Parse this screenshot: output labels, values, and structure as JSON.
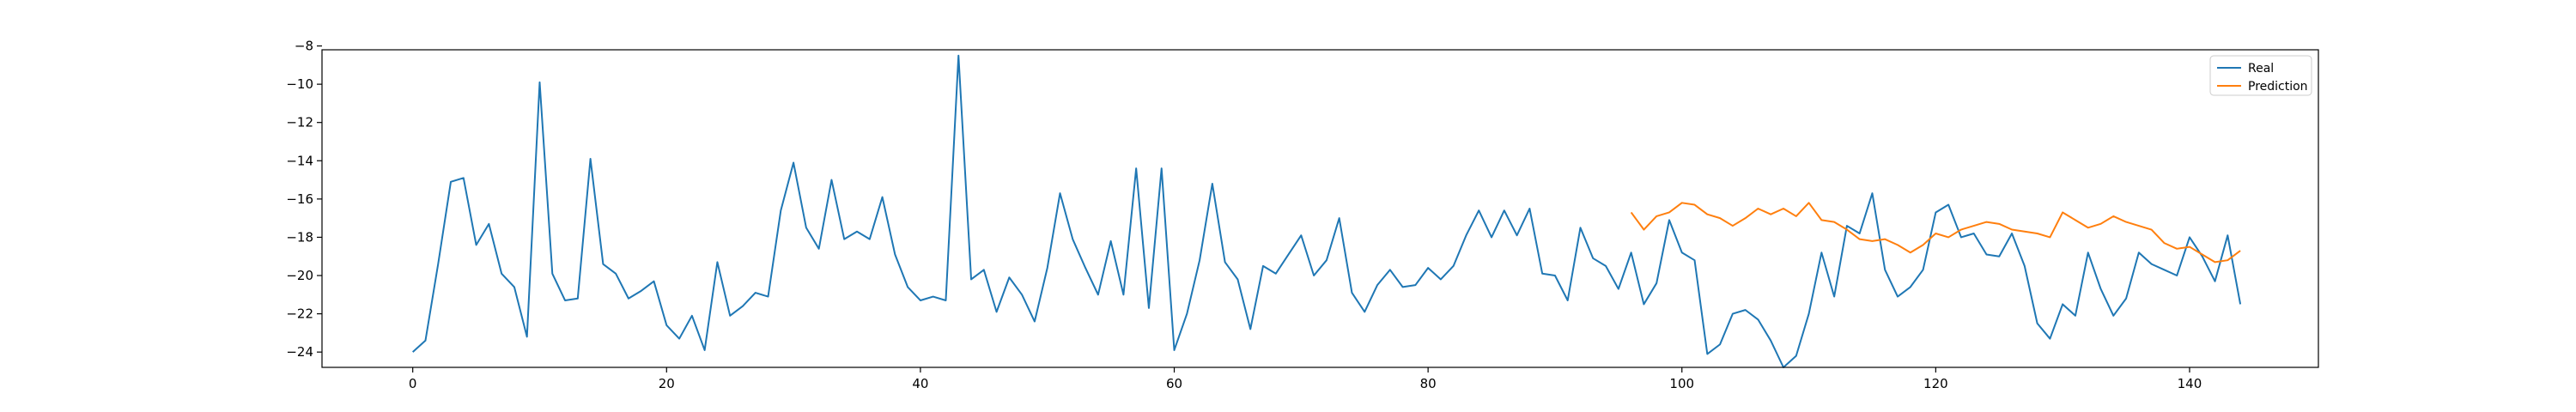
{
  "chart_data": {
    "type": "line",
    "title": "",
    "xlabel": "",
    "ylabel": "",
    "xlim": [
      -7.15,
      150.15
    ],
    "ylim": [
      -24.8,
      -8.2
    ],
    "xticks": [
      0,
      20,
      40,
      60,
      80,
      100,
      120,
      140
    ],
    "yticks": [
      -24,
      -22,
      -20,
      -18,
      -16,
      -14,
      -12,
      -10,
      -8
    ],
    "xtick_labels": [
      "0",
      "20",
      "40",
      "60",
      "80",
      "100",
      "120",
      "140"
    ],
    "ytick_labels": [
      "−24",
      "−22",
      "−20",
      "−18",
      "−16",
      "−14",
      "−12",
      "−10",
      "−8"
    ],
    "grid": false,
    "legend_position": "top-right",
    "series": [
      {
        "name": "Real",
        "color": "#1f77b4",
        "x_start": 0,
        "values": [
          -24.0,
          -23.4,
          -19.4,
          -15.1,
          -14.9,
          -18.4,
          -17.3,
          -19.9,
          -20.6,
          -23.2,
          -9.9,
          -19.9,
          -21.3,
          -21.2,
          -13.9,
          -19.4,
          -19.9,
          -21.2,
          -20.8,
          -20.3,
          -22.6,
          -23.3,
          -22.1,
          -23.9,
          -19.3,
          -22.1,
          -21.6,
          -20.9,
          -21.1,
          -16.6,
          -14.1,
          -17.5,
          -18.6,
          -15.0,
          -18.1,
          -17.7,
          -18.1,
          -15.9,
          -18.9,
          -20.6,
          -21.3,
          -21.1,
          -21.3,
          -8.5,
          -20.2,
          -19.7,
          -21.9,
          -20.1,
          -21.0,
          -22.4,
          -19.6,
          -15.7,
          -18.1,
          -19.6,
          -21.0,
          -18.2,
          -21.0,
          -14.4,
          -21.7,
          -14.4,
          -23.9,
          -22.0,
          -19.2,
          -15.2,
          -19.3,
          -20.2,
          -22.8,
          -19.5,
          -19.9,
          -18.9,
          -17.9,
          -20.0,
          -19.2,
          -17.0,
          -20.9,
          -21.9,
          -20.5,
          -19.7,
          -20.6,
          -20.5,
          -19.6,
          -20.2,
          -19.5,
          -17.9,
          -16.6,
          -18.0,
          -16.6,
          -17.9,
          -16.5,
          -19.9,
          -20.0,
          -21.3,
          -17.5,
          -19.1,
          -19.5,
          -20.7,
          -18.8,
          -21.5,
          -20.4,
          -17.1,
          -18.8,
          -19.2,
          -24.1,
          -23.6,
          -22.0,
          -21.8,
          -22.3,
          -23.4,
          -24.8,
          -24.2,
          -22.0,
          -18.8,
          -21.1,
          -17.4,
          -17.8,
          -15.7,
          -19.7,
          -21.1,
          -20.6,
          -19.7,
          -16.7,
          -16.3,
          -18.0,
          -17.8,
          -18.9,
          -19.0,
          -17.8,
          -19.5,
          -22.5,
          -23.3,
          -21.5,
          -22.1,
          -18.8,
          -20.7,
          -22.1,
          -21.2,
          -18.8,
          -19.4,
          -19.7,
          -20.0,
          -18.0,
          -19.0,
          -20.3,
          -17.9,
          -21.5
        ]
      },
      {
        "name": "Prediction",
        "color": "#ff7f0e",
        "x_start": 96,
        "values": [
          -16.7,
          -17.6,
          -16.9,
          -16.7,
          -16.2,
          -16.3,
          -16.8,
          -17.0,
          -17.4,
          -17.0,
          -16.5,
          -16.8,
          -16.5,
          -16.9,
          -16.2,
          -17.1,
          -17.2,
          -17.6,
          -18.1,
          -18.2,
          -18.1,
          -18.4,
          -18.8,
          -18.4,
          -17.8,
          -18.0,
          -17.6,
          -17.4,
          -17.2,
          -17.3,
          -17.6,
          -17.7,
          -17.8,
          -18.0,
          -16.7,
          -17.1,
          -17.5,
          -17.3,
          -16.9,
          -17.2,
          -17.4,
          -17.6,
          -18.3,
          -18.6,
          -18.5,
          -18.9,
          -19.3,
          -19.2,
          -18.7
        ]
      }
    ]
  }
}
